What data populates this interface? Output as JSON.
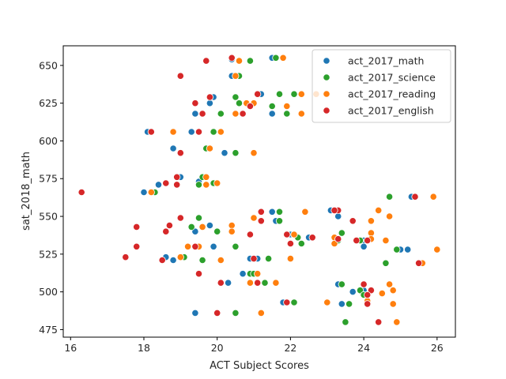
{
  "chart_data": {
    "type": "scatter",
    "xlabel": "ACT Subject Scores",
    "ylabel": "sat_2018_math",
    "xlim": [
      15.8,
      26.5
    ],
    "ylim": [
      470,
      663
    ],
    "xticks": [
      16,
      18,
      20,
      22,
      24,
      26
    ],
    "yticks": [
      475,
      500,
      525,
      550,
      575,
      600,
      625,
      650
    ],
    "grid": false,
    "legend_placement": "top-right",
    "series": [
      {
        "name": "act_2017_math",
        "color": "#1f77b4",
        "points": [
          [
            21.5,
            655
          ],
          [
            20.4,
            654
          ],
          [
            20.4,
            643
          ],
          [
            21.2,
            631
          ],
          [
            19.9,
            629
          ],
          [
            19.8,
            625
          ],
          [
            21.5,
            618
          ],
          [
            19.4,
            618
          ],
          [
            18.1,
            606
          ],
          [
            19.3,
            606
          ],
          [
            18.8,
            595
          ],
          [
            20.2,
            592
          ],
          [
            19,
            576
          ],
          [
            18.4,
            571
          ],
          [
            19.5,
            573
          ],
          [
            18,
            566
          ],
          [
            18.2,
            566
          ],
          [
            25.3,
            563
          ],
          [
            23.1,
            554
          ],
          [
            21.5,
            553
          ],
          [
            23.3,
            550
          ],
          [
            19.8,
            544
          ],
          [
            21.6,
            547
          ],
          [
            22,
            538
          ],
          [
            22.5,
            536
          ],
          [
            22.3,
            532
          ],
          [
            19.4,
            540
          ],
          [
            24,
            534
          ],
          [
            23.3,
            534
          ],
          [
            19.5,
            530
          ],
          [
            19.9,
            530
          ],
          [
            24,
            530
          ],
          [
            25,
            528
          ],
          [
            25.2,
            528
          ],
          [
            18.8,
            521
          ],
          [
            18.6,
            523
          ],
          [
            20.9,
            522
          ],
          [
            21.1,
            522
          ],
          [
            20.7,
            512
          ],
          [
            21.3,
            506
          ],
          [
            20.3,
            506
          ],
          [
            20.9,
            506
          ],
          [
            23.3,
            505
          ],
          [
            23.7,
            500
          ],
          [
            24,
            501
          ],
          [
            24.1,
            498
          ],
          [
            21.8,
            493
          ],
          [
            23.4,
            492
          ],
          [
            19.4,
            486
          ],
          [
            20.5,
            486
          ]
        ]
      },
      {
        "name": "act_2017_science",
        "color": "#2ca02c",
        "points": [
          [
            21.6,
            655
          ],
          [
            20.6,
            643
          ],
          [
            20.9,
            653
          ],
          [
            21.7,
            631
          ],
          [
            22.1,
            631
          ],
          [
            20.5,
            629
          ],
          [
            20.6,
            625
          ],
          [
            21.5,
            623
          ],
          [
            21.9,
            618
          ],
          [
            20.1,
            618
          ],
          [
            19.9,
            606
          ],
          [
            20.5,
            592
          ],
          [
            19.7,
            595
          ],
          [
            19.6,
            576
          ],
          [
            19.5,
            571
          ],
          [
            19.9,
            572
          ],
          [
            18.3,
            566
          ],
          [
            24.7,
            563
          ],
          [
            21.7,
            553
          ],
          [
            21.7,
            547
          ],
          [
            22.1,
            538
          ],
          [
            22.2,
            536
          ],
          [
            22.3,
            532
          ],
          [
            19.5,
            549
          ],
          [
            19.3,
            543
          ],
          [
            20,
            540
          ],
          [
            23.4,
            539
          ],
          [
            23.3,
            534
          ],
          [
            23.9,
            534
          ],
          [
            24.1,
            534
          ],
          [
            19.4,
            530
          ],
          [
            20.5,
            530
          ],
          [
            24.9,
            528
          ],
          [
            19.1,
            523
          ],
          [
            19.6,
            521
          ],
          [
            21.4,
            522
          ],
          [
            24.6,
            519
          ],
          [
            20.9,
            512
          ],
          [
            20.9,
            506
          ],
          [
            21.3,
            506
          ],
          [
            23.4,
            505
          ],
          [
            23.9,
            501
          ],
          [
            24,
            498
          ],
          [
            22.1,
            493
          ],
          [
            23.6,
            492
          ],
          [
            23.5,
            480
          ],
          [
            20.5,
            486
          ],
          [
            21,
            512
          ]
        ]
      },
      {
        "name": "act_2017_reading",
        "color": "#ff7f0e",
        "points": [
          [
            21.8,
            655
          ],
          [
            20.5,
            643
          ],
          [
            20.6,
            653
          ],
          [
            22.3,
            631
          ],
          [
            22.7,
            631
          ],
          [
            20.8,
            625
          ],
          [
            21,
            625
          ],
          [
            21.9,
            623
          ],
          [
            20.5,
            618
          ],
          [
            22.3,
            618
          ],
          [
            20.1,
            606
          ],
          [
            18.8,
            606
          ],
          [
            21,
            592
          ],
          [
            19.8,
            595
          ],
          [
            19.7,
            576
          ],
          [
            19.7,
            571
          ],
          [
            20,
            572
          ],
          [
            18.2,
            566
          ],
          [
            25.9,
            563
          ],
          [
            22.4,
            553
          ],
          [
            24.4,
            554
          ],
          [
            20.4,
            544
          ],
          [
            19.6,
            543
          ],
          [
            21,
            549
          ],
          [
            22.1,
            538
          ],
          [
            20.4,
            540
          ],
          [
            24.2,
            539
          ],
          [
            23.2,
            536
          ],
          [
            24.2,
            535
          ],
          [
            23.2,
            532
          ],
          [
            19.2,
            530
          ],
          [
            19.5,
            530
          ],
          [
            19,
            523
          ],
          [
            20.1,
            521
          ],
          [
            22,
            522
          ],
          [
            24.6,
            534
          ],
          [
            26,
            528
          ],
          [
            25.6,
            519
          ],
          [
            21.1,
            512
          ],
          [
            21.6,
            506
          ],
          [
            20.9,
            506
          ],
          [
            24.7,
            505
          ],
          [
            24.8,
            501
          ],
          [
            24.5,
            499
          ],
          [
            24.1,
            494
          ],
          [
            23,
            493
          ],
          [
            24.8,
            492
          ],
          [
            24.9,
            480
          ],
          [
            21.2,
            486
          ],
          [
            24.7,
            550
          ],
          [
            24.2,
            547
          ]
        ]
      },
      {
        "name": "act_2017_english",
        "color": "#d62728",
        "points": [
          [
            20.4,
            655
          ],
          [
            19.7,
            653
          ],
          [
            19,
            643
          ],
          [
            21.1,
            631
          ],
          [
            19.8,
            629
          ],
          [
            19.4,
            625
          ],
          [
            20.9,
            623
          ],
          [
            19.6,
            618
          ],
          [
            20.7,
            618
          ],
          [
            18.2,
            606
          ],
          [
            19.5,
            606
          ],
          [
            19,
            592
          ],
          [
            18.9,
            576
          ],
          [
            18.9,
            571
          ],
          [
            18.6,
            572
          ],
          [
            16.3,
            566
          ],
          [
            25.4,
            563
          ],
          [
            21.2,
            553
          ],
          [
            23.3,
            554
          ],
          [
            21.2,
            547
          ],
          [
            23.7,
            547
          ],
          [
            17.8,
            543
          ],
          [
            18.7,
            544
          ],
          [
            18.6,
            540
          ],
          [
            20.9,
            538
          ],
          [
            21.9,
            538
          ],
          [
            22.6,
            536
          ],
          [
            23.3,
            535
          ],
          [
            23.8,
            534
          ],
          [
            22,
            532
          ],
          [
            17.8,
            530
          ],
          [
            19.4,
            530
          ],
          [
            18.5,
            521
          ],
          [
            17.5,
            523
          ],
          [
            21,
            522
          ],
          [
            25.5,
            519
          ],
          [
            19.5,
            512
          ],
          [
            21.1,
            506
          ],
          [
            20.1,
            506
          ],
          [
            24,
            505
          ],
          [
            24.2,
            501
          ],
          [
            24.1,
            498
          ],
          [
            21.9,
            493
          ],
          [
            24.1,
            492
          ],
          [
            24.4,
            480
          ],
          [
            20,
            486
          ],
          [
            19,
            549
          ],
          [
            24.1,
            534
          ],
          [
            23.2,
            554
          ]
        ]
      }
    ]
  }
}
